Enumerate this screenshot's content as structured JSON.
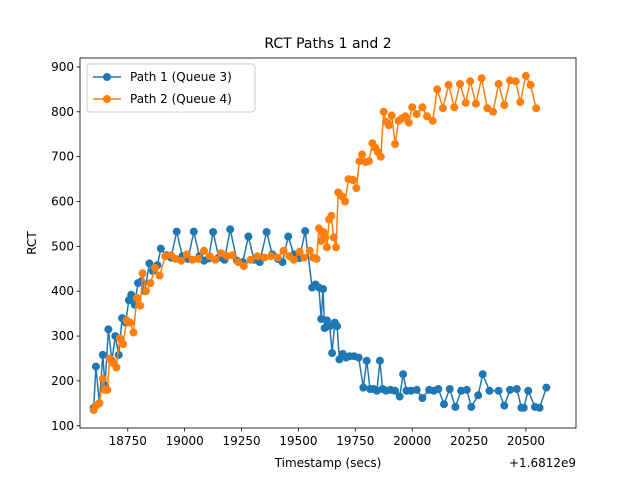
{
  "chart_data": {
    "type": "line",
    "title": "RCT Paths 1 and 2",
    "xlabel": "Timestamp (secs)",
    "ylabel": "RCT",
    "x_offset_label": "+1.6812e9",
    "xlim": [
      18540,
      20720
    ],
    "ylim": [
      95,
      920
    ],
    "x_ticks": [
      18500,
      18750,
      19000,
      19250,
      19500,
      19750,
      20000,
      20250,
      20500
    ],
    "x_tick_labels": [
      "18500",
      "18750",
      "19000",
      "19250",
      "19500",
      "19750",
      "20000",
      "20250",
      "20500"
    ],
    "y_ticks": [
      100,
      200,
      300,
      400,
      500,
      600,
      700,
      800,
      900
    ],
    "y_tick_labels": [
      "100",
      "200",
      "300",
      "400",
      "500",
      "600",
      "700",
      "800",
      "900"
    ],
    "grid": false,
    "legend_position": "upper-left",
    "series": [
      {
        "name": "Path 1 (Queue 3)",
        "color": "#1f77b4",
        "points": [
          [
            18600,
            140
          ],
          [
            18610,
            232
          ],
          [
            18625,
            150
          ],
          [
            18640,
            258
          ],
          [
            18650,
            190
          ],
          [
            18665,
            315
          ],
          [
            18680,
            245
          ],
          [
            18695,
            300
          ],
          [
            18710,
            258
          ],
          [
            18725,
            340
          ],
          [
            18740,
            330
          ],
          [
            18755,
            380
          ],
          [
            18765,
            392
          ],
          [
            18780,
            370
          ],
          [
            18795,
            418
          ],
          [
            18810,
            422
          ],
          [
            18825,
            400
          ],
          [
            18845,
            462
          ],
          [
            18860,
            445
          ],
          [
            18880,
            458
          ],
          [
            18895,
            495
          ],
          [
            18920,
            480
          ],
          [
            18940,
            475
          ],
          [
            18965,
            533
          ],
          [
            18990,
            478
          ],
          [
            19015,
            472
          ],
          [
            19040,
            533
          ],
          [
            19065,
            478
          ],
          [
            19085,
            468
          ],
          [
            19105,
            473
          ],
          [
            19125,
            532
          ],
          [
            19150,
            475
          ],
          [
            19175,
            470
          ],
          [
            19200,
            538
          ],
          [
            19230,
            468
          ],
          [
            19255,
            465
          ],
          [
            19280,
            522
          ],
          [
            19305,
            470
          ],
          [
            19330,
            465
          ],
          [
            19360,
            532
          ],
          [
            19385,
            482
          ],
          [
            19410,
            472
          ],
          [
            19430,
            465
          ],
          [
            19455,
            522
          ],
          [
            19480,
            482
          ],
          [
            19505,
            474
          ],
          [
            19530,
            534
          ],
          [
            19560,
            408
          ],
          [
            19575,
            415
          ],
          [
            19590,
            408
          ],
          [
            19600,
            338
          ],
          [
            19608,
            405
          ],
          [
            19615,
            318
          ],
          [
            19625,
            335
          ],
          [
            19638,
            322
          ],
          [
            19648,
            262
          ],
          [
            19660,
            330
          ],
          [
            19670,
            322
          ],
          [
            19680,
            248
          ],
          [
            19695,
            260
          ],
          [
            19710,
            252
          ],
          [
            19725,
            255
          ],
          [
            19745,
            255
          ],
          [
            19765,
            252
          ],
          [
            19785,
            185
          ],
          [
            19800,
            245
          ],
          [
            19815,
            182
          ],
          [
            19830,
            182
          ],
          [
            19845,
            178
          ],
          [
            19858,
            245
          ],
          [
            19870,
            182
          ],
          [
            19885,
            178
          ],
          [
            19905,
            180
          ],
          [
            19925,
            178
          ],
          [
            19945,
            165
          ],
          [
            19960,
            215
          ],
          [
            19975,
            178
          ],
          [
            19995,
            178
          ],
          [
            20020,
            180
          ],
          [
            20045,
            162
          ],
          [
            20075,
            180
          ],
          [
            20095,
            178
          ],
          [
            20115,
            182
          ],
          [
            20140,
            148
          ],
          [
            20165,
            182
          ],
          [
            20190,
            142
          ],
          [
            20215,
            178
          ],
          [
            20240,
            180
          ],
          [
            20260,
            142
          ],
          [
            20290,
            168
          ],
          [
            20310,
            215
          ],
          [
            20340,
            178
          ],
          [
            20380,
            178
          ],
          [
            20405,
            145
          ],
          [
            20430,
            180
          ],
          [
            20460,
            182
          ],
          [
            20480,
            140
          ],
          [
            20490,
            140
          ],
          [
            20510,
            178
          ],
          [
            20540,
            142
          ],
          [
            20560,
            140
          ],
          [
            20590,
            185
          ]
        ]
      },
      {
        "name": "Path 2 (Queue 4)",
        "color": "#ff7f0e",
        "points": [
          [
            18600,
            135
          ],
          [
            18610,
            145
          ],
          [
            18625,
            150
          ],
          [
            18640,
            205
          ],
          [
            18650,
            180
          ],
          [
            18660,
            180
          ],
          [
            18670,
            250
          ],
          [
            18685,
            240
          ],
          [
            18700,
            230
          ],
          [
            18715,
            295
          ],
          [
            18730,
            282
          ],
          [
            18745,
            335
          ],
          [
            18760,
            330
          ],
          [
            18775,
            308
          ],
          [
            18790,
            385
          ],
          [
            18805,
            368
          ],
          [
            18815,
            440
          ],
          [
            18830,
            400
          ],
          [
            18850,
            418
          ],
          [
            18870,
            452
          ],
          [
            18890,
            435
          ],
          [
            18915,
            478
          ],
          [
            18940,
            480
          ],
          [
            18960,
            472
          ],
          [
            18985,
            468
          ],
          [
            19010,
            482
          ],
          [
            19035,
            470
          ],
          [
            19060,
            472
          ],
          [
            19085,
            490
          ],
          [
            19110,
            478
          ],
          [
            19135,
            470
          ],
          [
            19160,
            485
          ],
          [
            19185,
            478
          ],
          [
            19210,
            480
          ],
          [
            19235,
            465
          ],
          [
            19260,
            456
          ],
          [
            19290,
            470
          ],
          [
            19320,
            478
          ],
          [
            19350,
            475
          ],
          [
            19380,
            478
          ],
          [
            19410,
            475
          ],
          [
            19435,
            490
          ],
          [
            19460,
            478
          ],
          [
            19480,
            470
          ],
          [
            19505,
            488
          ],
          [
            19525,
            475
          ],
          [
            19550,
            490
          ],
          [
            19565,
            475
          ],
          [
            19580,
            472
          ],
          [
            19590,
            540
          ],
          [
            19600,
            512
          ],
          [
            19610,
            532
          ],
          [
            19618,
            520
          ],
          [
            19625,
            498
          ],
          [
            19635,
            560
          ],
          [
            19645,
            568
          ],
          [
            19655,
            520
          ],
          [
            19665,
            498
          ],
          [
            19675,
            620
          ],
          [
            19690,
            612
          ],
          [
            19705,
            600
          ],
          [
            19720,
            650
          ],
          [
            19740,
            648
          ],
          [
            19755,
            630
          ],
          [
            19768,
            690
          ],
          [
            19780,
            705
          ],
          [
            19795,
            688
          ],
          [
            19810,
            690
          ],
          [
            19825,
            730
          ],
          [
            19838,
            720
          ],
          [
            19850,
            710
          ],
          [
            19862,
            700
          ],
          [
            19875,
            800
          ],
          [
            19885,
            778
          ],
          [
            19898,
            770
          ],
          [
            19910,
            792
          ],
          [
            19925,
            728
          ],
          [
            19940,
            780
          ],
          [
            19955,
            785
          ],
          [
            19970,
            790
          ],
          [
            19985,
            776
          ],
          [
            20000,
            810
          ],
          [
            20020,
            795
          ],
          [
            20045,
            810
          ],
          [
            20065,
            790
          ],
          [
            20090,
            780
          ],
          [
            20110,
            850
          ],
          [
            20135,
            808
          ],
          [
            20160,
            860
          ],
          [
            20185,
            810
          ],
          [
            20210,
            862
          ],
          [
            20235,
            820
          ],
          [
            20255,
            868
          ],
          [
            20280,
            818
          ],
          [
            20305,
            875
          ],
          [
            20330,
            808
          ],
          [
            20355,
            800
          ],
          [
            20380,
            862
          ],
          [
            20405,
            815
          ],
          [
            20430,
            870
          ],
          [
            20455,
            868
          ],
          [
            20475,
            822
          ],
          [
            20500,
            880
          ],
          [
            20520,
            860
          ],
          [
            20545,
            808
          ]
        ]
      }
    ]
  }
}
